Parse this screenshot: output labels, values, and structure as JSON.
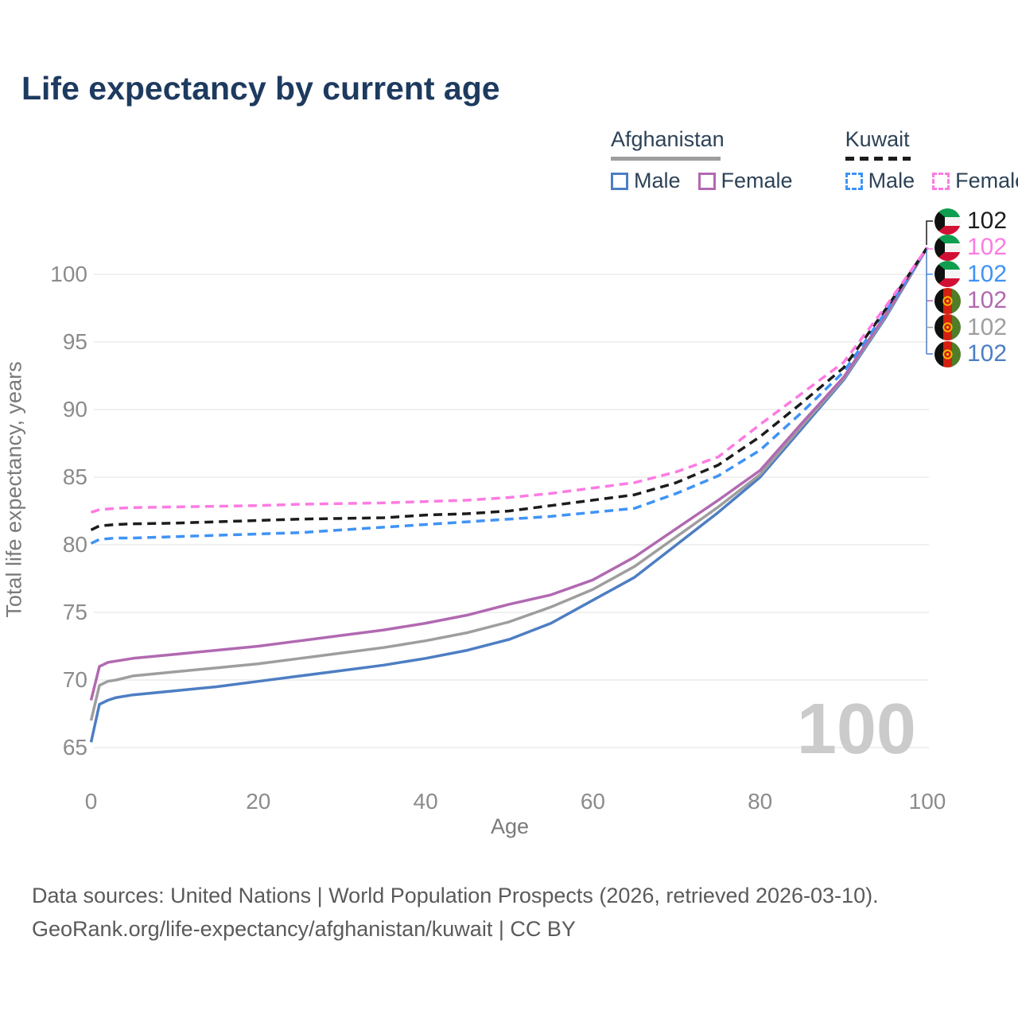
{
  "title": "Life expectancy by current age",
  "watermark": "100",
  "legend": {
    "groups": [
      {
        "country": "Afghanistan",
        "underline_style": "solid",
        "underline_color": "#9e9e9e",
        "items": [
          {
            "label": "Male",
            "color": "#4d7ec3",
            "dash": "solid"
          },
          {
            "label": "Female",
            "color": "#b169b1",
            "dash": "solid"
          }
        ]
      },
      {
        "country": "Kuwait",
        "underline_style": "dashed",
        "underline_color": "#1c1c1c",
        "items": [
          {
            "label": "Male",
            "color": "#3f93f5",
            "dash": "dashed"
          },
          {
            "label": "Female",
            "color": "#fd7be2",
            "dash": "dashed"
          }
        ]
      }
    ]
  },
  "y_axis": {
    "title": "Total life expectancy, years",
    "ticks": [
      65,
      70,
      75,
      80,
      85,
      90,
      95,
      100
    ]
  },
  "x_axis": {
    "title": "Age",
    "ticks": [
      0,
      20,
      40,
      60,
      80,
      100
    ]
  },
  "end_labels": [
    {
      "flag": "kuwait",
      "value": "102",
      "color": "#1c1c1c",
      "series": "Kuwait Both sexes"
    },
    {
      "flag": "kuwait",
      "value": "102",
      "color": "#fd7be2",
      "series": "Kuwait Female"
    },
    {
      "flag": "kuwait",
      "value": "102",
      "color": "#3f93f5",
      "series": "Kuwait Male"
    },
    {
      "flag": "afghanistan",
      "value": "102",
      "color": "#b169b1",
      "series": "Afghanistan Female"
    },
    {
      "flag": "afghanistan",
      "value": "102",
      "color": "#9e9e9e",
      "series": "Afghanistan Both sexes"
    },
    {
      "flag": "afghanistan",
      "value": "102",
      "color": "#4d7ec3",
      "series": "Afghanistan Male"
    }
  ],
  "footer": {
    "line1": "Data sources: United Nations | World Population Prospects (2026, retrieved 2026-03-10).",
    "line2": "GeoRank.org/life-expectancy/afghanistan/kuwait | CC BY"
  },
  "colors": {
    "title": "#1d3a5f",
    "grid": "#ececec",
    "tick_text": "#8b8b8b",
    "axis_title_text": "#7a7a7a",
    "watermark": "#cbcbcb",
    "footer_text": "#5a5a5a"
  },
  "chart_data": {
    "type": "line",
    "title": "Life expectancy by current age",
    "xlabel": "Age",
    "ylabel": "Total life expectancy, years",
    "xlim": [
      0,
      100
    ],
    "ylim": [
      63.5,
      103.5
    ],
    "grid": "horizontal",
    "x": [
      0,
      1,
      2,
      3,
      5,
      10,
      15,
      20,
      25,
      30,
      35,
      40,
      45,
      50,
      55,
      60,
      65,
      70,
      75,
      80,
      85,
      90,
      95,
      100
    ],
    "series": [
      {
        "name": "Afghanistan Male",
        "color": "#4d7ec3",
        "style": "solid",
        "values": [
          65.4,
          68.2,
          68.5,
          68.7,
          68.9,
          69.2,
          69.5,
          69.9,
          70.3,
          70.7,
          71.1,
          71.6,
          72.2,
          73.0,
          74.2,
          75.9,
          77.6,
          80.0,
          82.4,
          85.0,
          88.6,
          92.2,
          96.8,
          102
        ]
      },
      {
        "name": "Afghanistan Both sexes",
        "color": "#9e9e9e",
        "style": "solid",
        "values": [
          67.0,
          69.6,
          69.9,
          70.0,
          70.3,
          70.6,
          70.9,
          71.2,
          71.6,
          72.0,
          72.4,
          72.9,
          73.5,
          74.3,
          75.4,
          76.7,
          78.4,
          80.6,
          82.8,
          85.2,
          88.8,
          92.3,
          96.9,
          102
        ]
      },
      {
        "name": "Afghanistan Female",
        "color": "#b169b1",
        "style": "solid",
        "values": [
          68.5,
          71.0,
          71.3,
          71.4,
          71.6,
          71.9,
          72.2,
          72.5,
          72.9,
          73.3,
          73.7,
          74.2,
          74.8,
          75.6,
          76.3,
          77.4,
          79.1,
          81.2,
          83.3,
          85.5,
          89.0,
          92.4,
          97.0,
          102
        ]
      },
      {
        "name": "Kuwait Male",
        "color": "#3f93f5",
        "style": "dashed",
        "values": [
          80.1,
          80.4,
          80.45,
          80.5,
          80.5,
          80.6,
          80.7,
          80.8,
          80.9,
          81.1,
          81.3,
          81.5,
          81.7,
          81.9,
          82.1,
          82.4,
          82.7,
          83.8,
          85.1,
          87.0,
          89.8,
          92.8,
          97.2,
          102
        ]
      },
      {
        "name": "Kuwait Both sexes",
        "color": "#1c1c1c",
        "style": "dashed",
        "values": [
          81.1,
          81.4,
          81.45,
          81.5,
          81.55,
          81.6,
          81.7,
          81.8,
          81.9,
          81.95,
          82.0,
          82.2,
          82.3,
          82.5,
          82.9,
          83.3,
          83.7,
          84.6,
          85.9,
          88.0,
          90.5,
          93.1,
          97.4,
          102
        ]
      },
      {
        "name": "Kuwait Female",
        "color": "#fd7be2",
        "style": "dashed",
        "values": [
          82.4,
          82.6,
          82.65,
          82.7,
          82.75,
          82.8,
          82.85,
          82.9,
          83.0,
          83.05,
          83.1,
          83.2,
          83.3,
          83.5,
          83.8,
          84.2,
          84.6,
          85.4,
          86.5,
          88.9,
          91.2,
          93.5,
          97.6,
          102
        ]
      }
    ],
    "legend_position": "top-right",
    "end_value_labels": [
      102,
      102,
      102,
      102,
      102,
      102
    ]
  }
}
